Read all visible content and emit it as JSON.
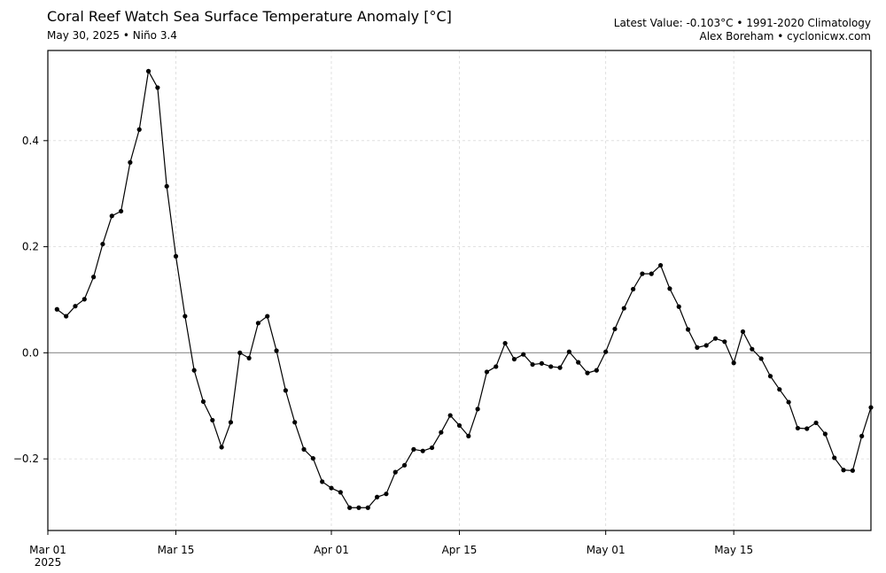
{
  "header": {
    "title": "Coral Reef Watch Sea Surface Temperature Anomaly [°C]",
    "subtitle": "May 30, 2025 • Niño 3.4",
    "info_line1": "Latest Value: -0.103°C • 1991-2020 Climatology",
    "info_line2": "Alex Boreham • cyclonicwx.com"
  },
  "chart_data": {
    "type": "line",
    "title": "Coral Reef Watch Sea Surface Temperature Anomaly [°C]",
    "subtitle": "May 30, 2025 • Niño 3.4",
    "xlabel": "",
    "ylabel": "",
    "xlim": [
      "2025-03-01",
      "2025-05-30"
    ],
    "ylim": [
      -0.335,
      0.57
    ],
    "grid": true,
    "zero_line": true,
    "x_ticks": [
      {
        "date": "2025-03-01",
        "label": "Mar 01",
        "label2": "2025"
      },
      {
        "date": "2025-03-15",
        "label": "Mar 15"
      },
      {
        "date": "2025-04-01",
        "label": "Apr 01"
      },
      {
        "date": "2025-04-15",
        "label": "Apr 15"
      },
      {
        "date": "2025-05-01",
        "label": "May 01"
      },
      {
        "date": "2025-05-15",
        "label": "May 15"
      }
    ],
    "y_ticks": [
      {
        "value": -0.2,
        "label": "−0.2"
      },
      {
        "value": 0.0,
        "label": "0.0"
      },
      {
        "value": 0.2,
        "label": "0.2"
      },
      {
        "value": 0.4,
        "label": "0.4"
      }
    ],
    "series": [
      {
        "start_date": "2025-03-02",
        "color": "#000000",
        "values": [
          0.082,
          0.069,
          0.088,
          0.101,
          0.143,
          0.205,
          0.258,
          0.267,
          0.359,
          0.421,
          0.531,
          0.5,
          0.314,
          0.182,
          0.069,
          -0.033,
          -0.092,
          -0.127,
          -0.178,
          -0.131,
          0.0,
          -0.01,
          0.056,
          0.069,
          0.004,
          -0.071,
          -0.131,
          -0.182,
          -0.199,
          -0.243,
          -0.255,
          -0.263,
          -0.292,
          -0.292,
          -0.292,
          -0.272,
          -0.266,
          -0.225,
          -0.212,
          -0.182,
          -0.185,
          -0.179,
          -0.15,
          -0.118,
          -0.137,
          -0.157,
          -0.106,
          -0.036,
          -0.026,
          0.018,
          -0.012,
          -0.003,
          -0.022,
          -0.02,
          -0.026,
          -0.028,
          0.002,
          -0.018,
          -0.038,
          -0.033,
          0.002,
          0.045,
          0.084,
          0.12,
          0.149,
          0.149,
          0.165,
          0.121,
          0.087,
          0.044,
          0.01,
          0.014,
          0.027,
          0.021,
          -0.019,
          0.04,
          0.007,
          -0.011,
          -0.044,
          -0.069,
          -0.093,
          -0.142,
          -0.143,
          -0.132,
          -0.153,
          -0.198,
          -0.221,
          -0.222,
          -0.157,
          -0.103
        ]
      }
    ]
  }
}
